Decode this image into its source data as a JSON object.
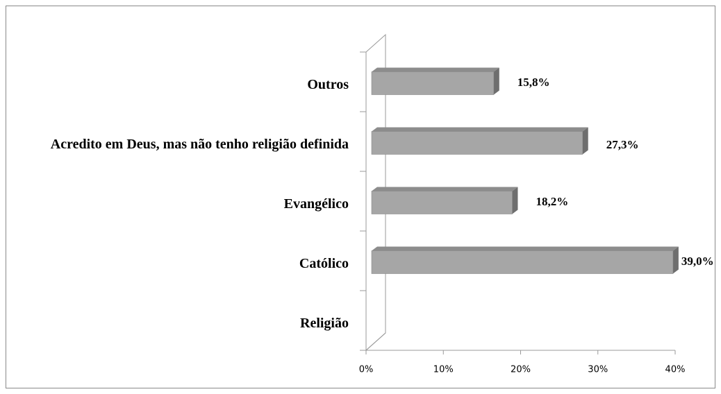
{
  "chart_data": {
    "type": "bar",
    "orientation": "horizontal",
    "categories": [
      "Religião",
      "Católico",
      "Evangélico",
      "Acredito em Deus, mas não tenho religião definida",
      "Outros"
    ],
    "values": [
      null,
      39.0,
      18.2,
      27.3,
      15.8
    ],
    "value_labels": [
      null,
      "39,0%",
      "18,2%",
      "27,3%",
      "15,8%"
    ],
    "color": "#a6a6a6",
    "xlim": [
      0,
      40
    ],
    "xticks": [
      {
        "value": 0,
        "label": "0%"
      },
      {
        "value": 10,
        "label": "10%"
      },
      {
        "value": 20,
        "label": "20%"
      },
      {
        "value": 30,
        "label": "30%"
      },
      {
        "value": 40,
        "label": "40%"
      }
    ],
    "grid": false
  }
}
